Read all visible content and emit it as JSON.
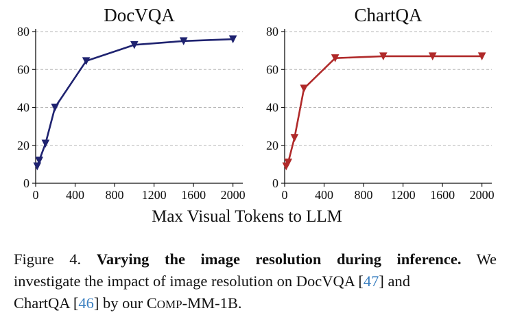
{
  "chart_data": [
    {
      "type": "line",
      "title": "DocVQA",
      "xlabel": "",
      "ylabel": "",
      "xlim": [
        0,
        2100
      ],
      "ylim": [
        0,
        80
      ],
      "xticks": [
        0,
        400,
        800,
        1200,
        1600,
        2000
      ],
      "yticks": [
        0,
        20,
        40,
        60,
        80
      ],
      "grid": "horizontal-dashed",
      "color": "#1f2370",
      "marker": "down-triangle",
      "series": [
        {
          "x": [
            16,
            36,
            100,
            196,
            512,
            1000,
            1500,
            2000
          ],
          "y": [
            9,
            12,
            21,
            40,
            64.5,
            73,
            75,
            76
          ]
        }
      ]
    },
    {
      "type": "line",
      "title": "ChartQA",
      "xlabel": "",
      "ylabel": "",
      "xlim": [
        0,
        2100
      ],
      "ylim": [
        0,
        80
      ],
      "xticks": [
        0,
        400,
        800,
        1200,
        1600,
        2000
      ],
      "yticks": [
        0,
        20,
        40,
        60,
        80
      ],
      "grid": "horizontal-dashed",
      "color": "#b02a2a",
      "marker": "down-triangle",
      "series": [
        {
          "x": [
            16,
            36,
            100,
            196,
            512,
            1000,
            1500,
            2000
          ],
          "y": [
            9,
            11,
            24,
            50,
            66,
            67,
            67,
            67
          ]
        }
      ]
    }
  ],
  "shared_xlabel": "Max Visual Tokens to LLM",
  "caption": {
    "figure_label": "Figure 4.",
    "bold_title": "Varying the image resolution during inference.",
    "line1_tail": "We",
    "line2_a": "investigate the impact of image resolution on DocVQA [",
    "ref1": "47",
    "line2_b": "] and",
    "line3_a": "ChartQA [",
    "ref2": "46",
    "line3_b": "] by our C",
    "line3_sc": "OMP",
    "line3_c": "-MM-1B."
  }
}
